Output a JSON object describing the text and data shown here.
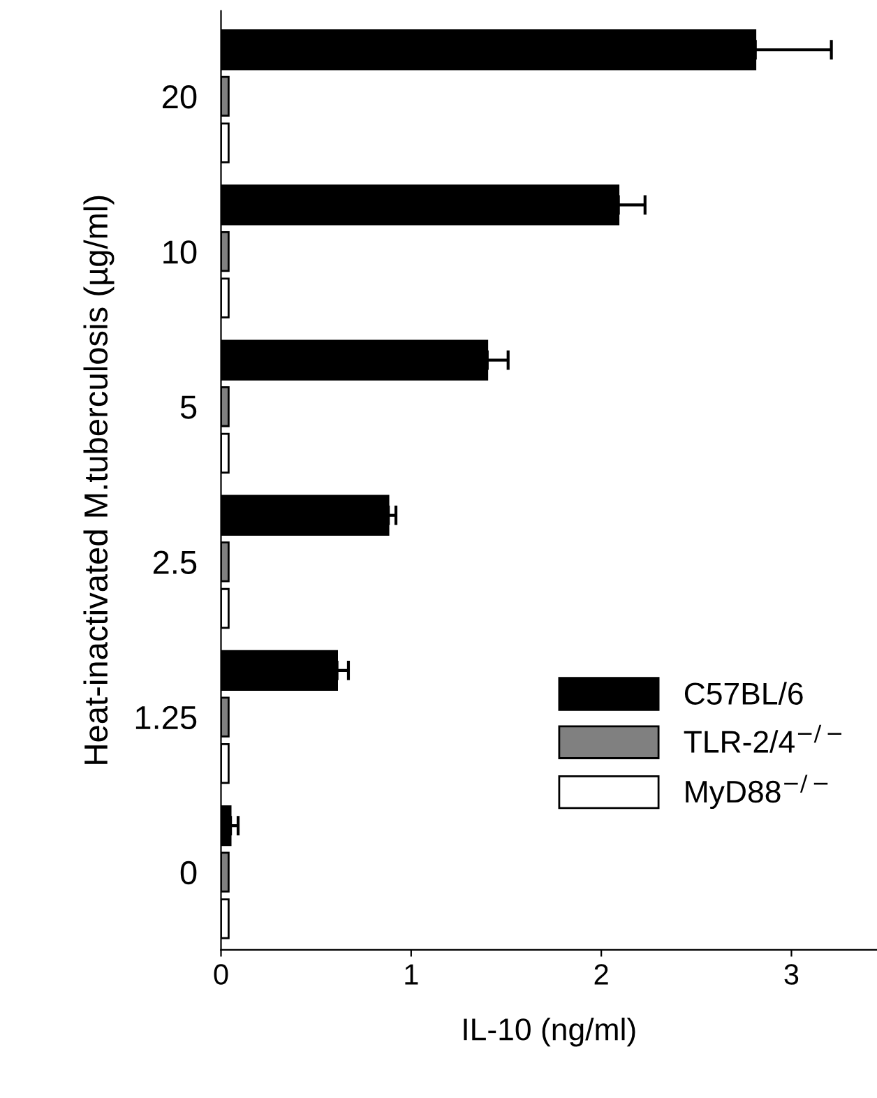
{
  "chart_data": {
    "type": "bar",
    "orientation": "horizontal",
    "xlabel": "IL-10 (ng/ml)",
    "ylabel": "Heat-inactivated M.tuberculosis (µg/ml)",
    "categories": [
      "20",
      "10",
      "5",
      "2.5",
      "1.25",
      "0"
    ],
    "series": [
      {
        "name": "C57BL/6",
        "color": "#000000",
        "values": [
          2.81,
          2.09,
          1.4,
          0.88,
          0.61,
          0.05
        ],
        "errors": [
          0.4,
          0.14,
          0.11,
          0.04,
          0.06,
          0.04
        ]
      },
      {
        "name": "TLR-2/4$^{−/−}$",
        "color": "#808080",
        "values": [
          0.04,
          0.04,
          0.04,
          0.04,
          0.04,
          0.04
        ]
      },
      {
        "name": "MyD88$^{−/−}$",
        "color": "#ffffff",
        "values": [
          0.04,
          0.04,
          0.04,
          0.04,
          0.04,
          0.04
        ]
      }
    ],
    "xlim": [
      0,
      3.45
    ],
    "xticks": [
      0,
      1,
      2,
      3
    ],
    "grid": false,
    "legend": "bottom right"
  }
}
